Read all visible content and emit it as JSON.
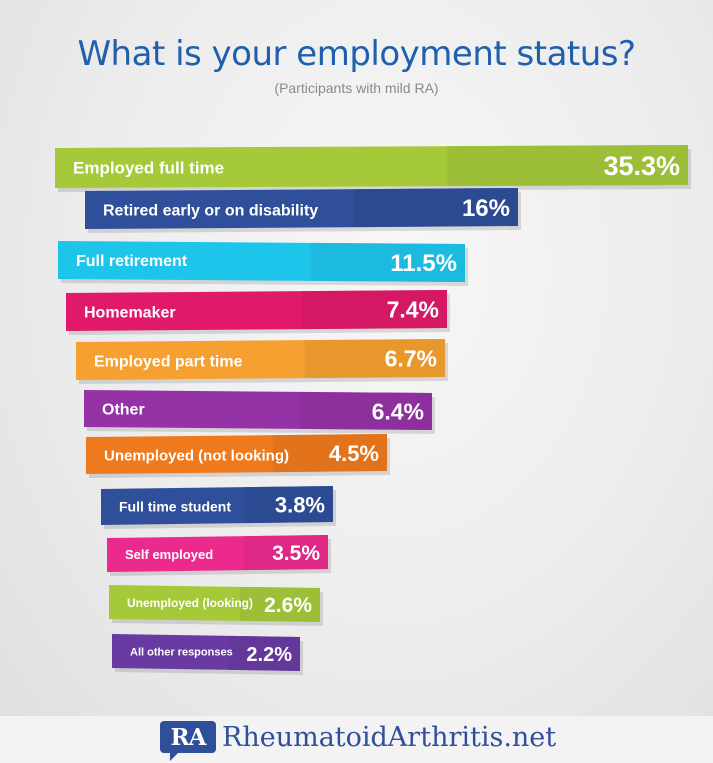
{
  "title": "What is your employment status?",
  "subtitle": "(Participants with mild RA)",
  "logo": {
    "badge": "RA",
    "name": "RheumatoidArthritis.net"
  },
  "chart_data": {
    "type": "bar",
    "orientation": "horizontal",
    "unit": "%",
    "categories": [
      "Employed full time",
      "Retired early or on disability",
      "Full retirement",
      "Homemaker",
      "Employed part time",
      "Other",
      "Unemployed (not looking)",
      "Full time student",
      "Self employed",
      "Unemployed (looking)",
      "All other responses"
    ],
    "values": [
      35.3,
      16,
      11.5,
      7.4,
      6.7,
      6.4,
      4.5,
      3.8,
      3.5,
      2.6,
      2.2
    ],
    "value_labels": [
      "35.3%",
      "16%",
      "11.5%",
      "7.4%",
      "6.7%",
      "6.4%",
      "4.5%",
      "3.8%",
      "3.5%",
      "2.6%",
      "2.2%"
    ],
    "colors": [
      "#a6c93a",
      "#2f4f9a",
      "#1ec5ea",
      "#e0196a",
      "#f5a030",
      "#9533a6",
      "#ef7a1d",
      "#2f4f9a",
      "#ec2a8e",
      "#a6c93a",
      "#6a3aa3"
    ]
  }
}
